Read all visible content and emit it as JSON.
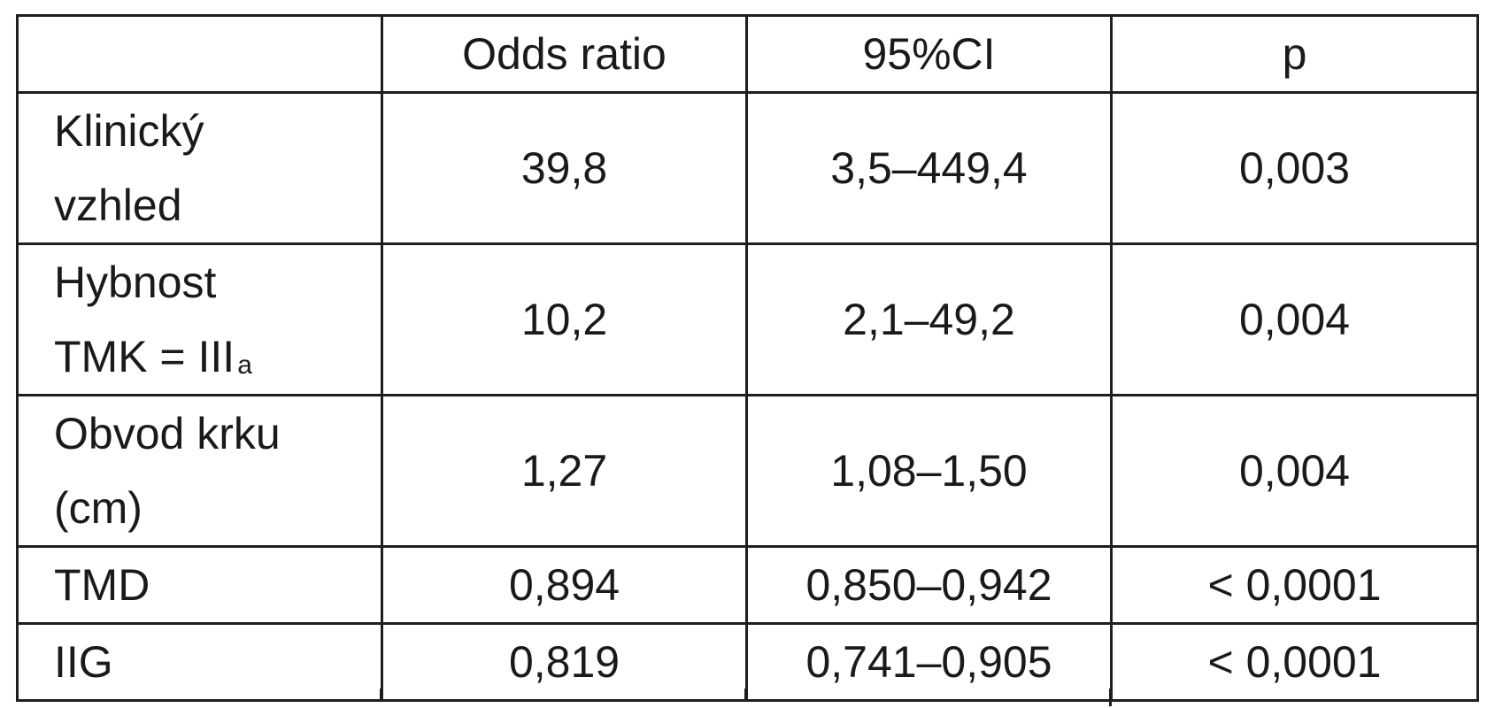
{
  "table": {
    "columns": [
      "",
      "Odds ratio",
      "95%CI",
      "p"
    ],
    "rows": [
      {
        "label_line1": "Klinický",
        "label_line2": "vzhled",
        "label_sup": "",
        "odds_ratio": "39,8",
        "ci": "3,5–449,4",
        "p": "0,003"
      },
      {
        "label_line1": "Hybnost",
        "label_line2": "TMK = III",
        "label_sup": "a",
        "odds_ratio": "10,2",
        "ci": "2,1–49,2",
        "p": "0,004"
      },
      {
        "label_line1": "Obvod krku",
        "label_line2": "(cm)",
        "label_sup": "",
        "odds_ratio": "1,27",
        "ci": "1,08–1,50",
        "p": "0,004"
      },
      {
        "label_line1": "TMD",
        "label_line2": "",
        "label_sup": "",
        "odds_ratio": "0,894",
        "ci": "0,850–0,942",
        "p": "< 0,0001"
      },
      {
        "label_line1": "IIG",
        "label_line2": "",
        "label_sup": "",
        "odds_ratio": "0,819",
        "ci": "0,741–0,905",
        "p": "< 0,0001"
      }
    ]
  }
}
